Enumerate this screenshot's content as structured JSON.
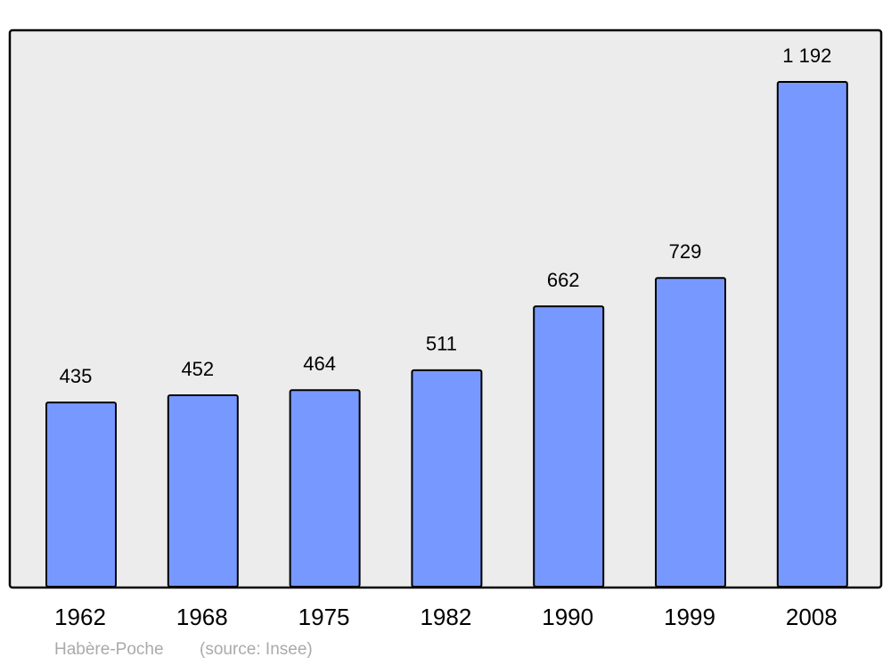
{
  "chart_data": {
    "type": "bar",
    "categories": [
      "1962",
      "1968",
      "1975",
      "1982",
      "1990",
      "1999",
      "2008"
    ],
    "values": [
      435,
      452,
      464,
      511,
      662,
      729,
      1192
    ],
    "value_labels": [
      "435",
      "452",
      "464",
      "511",
      "662",
      "729",
      "1 192"
    ],
    "color": "#7799ff",
    "caption": "Habère-Poche",
    "source": "(source: Insee)"
  }
}
